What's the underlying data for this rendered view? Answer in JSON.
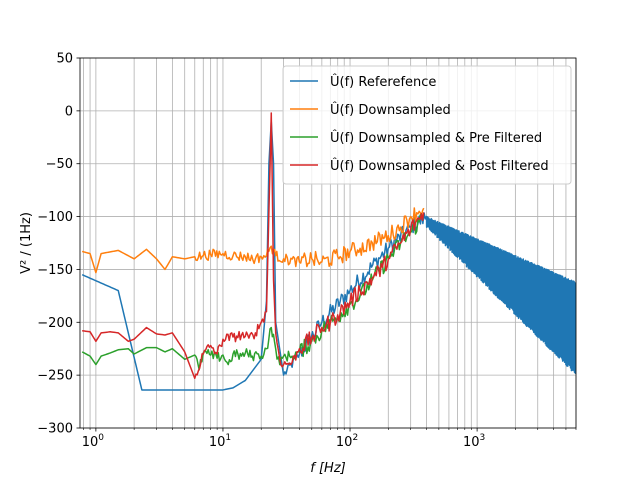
{
  "chart_data": {
    "type": "line",
    "xlabel": "f [Hz]",
    "ylabel": "V² / (1Hz)",
    "x_scale": "log",
    "xlim": [
      0.75,
      6000
    ],
    "ylim": [
      -300,
      50
    ],
    "y_ticks": [
      -300,
      -250,
      -200,
      -150,
      -100,
      -50,
      0,
      50
    ],
    "x_ticks": [
      {
        "value": 1,
        "label": "10",
        "exp": "0"
      },
      {
        "value": 10,
        "label": "10",
        "exp": "1"
      },
      {
        "value": 100,
        "label": "10",
        "exp": "2"
      },
      {
        "value": 1000,
        "label": "10",
        "exp": "3"
      }
    ],
    "grid": true,
    "legend_position": "top-right",
    "series": [
      {
        "name": "Û(f) Referefence",
        "color": "#1f77b4",
        "points": [
          [
            0.78,
            -155
          ],
          [
            1.5,
            -170
          ],
          [
            2.3,
            -264
          ],
          [
            5,
            -264
          ],
          [
            10,
            -264
          ],
          [
            12,
            -262
          ],
          [
            15,
            -255
          ],
          [
            20,
            -235
          ],
          [
            22,
            -180
          ],
          [
            23,
            -50
          ],
          [
            24,
            -10
          ],
          [
            25,
            -50
          ],
          [
            26,
            -200
          ],
          [
            30,
            -250
          ],
          [
            40,
            -230
          ],
          [
            60,
            -200
          ],
          [
            100,
            -170
          ],
          [
            200,
            -130
          ],
          [
            300,
            -110
          ],
          [
            400,
            -100
          ]
        ],
        "envelope": {
          "x_start": 400,
          "x_end": 6000,
          "upper_start": -100,
          "upper_end": -162,
          "lower_start": -110,
          "lower_end": -250
        }
      },
      {
        "name": "Û(f) Downsampled",
        "color": "#ff7f0e",
        "points": [
          [
            0.78,
            -133
          ],
          [
            0.9,
            -135
          ],
          [
            1.0,
            -153
          ],
          [
            1.1,
            -135
          ],
          [
            1.5,
            -132
          ],
          [
            2,
            -140
          ],
          [
            2.5,
            -131
          ],
          [
            3,
            -140
          ],
          [
            3.5,
            -150
          ],
          [
            4,
            -138
          ],
          [
            5,
            -140
          ],
          [
            6,
            -138
          ],
          [
            7,
            -137
          ],
          [
            8,
            -136
          ],
          [
            10,
            -135
          ],
          [
            12,
            -137
          ],
          [
            15,
            -138
          ],
          [
            18,
            -140
          ],
          [
            20,
            -138
          ],
          [
            22,
            -137
          ],
          [
            24,
            -128
          ],
          [
            26,
            -137
          ],
          [
            30,
            -140
          ],
          [
            40,
            -143
          ],
          [
            50,
            -140
          ],
          [
            60,
            -143
          ],
          [
            80,
            -138
          ],
          [
            100,
            -133
          ],
          [
            120,
            -130
          ],
          [
            150,
            -125
          ],
          [
            200,
            -118
          ],
          [
            250,
            -110
          ],
          [
            300,
            -100
          ],
          [
            350,
            -95
          ],
          [
            380,
            -92
          ]
        ]
      },
      {
        "name": "Û(f) Downsampled & Pre Filtered",
        "color": "#2ca02c",
        "points": [
          [
            0.78,
            -228
          ],
          [
            0.9,
            -232
          ],
          [
            1.0,
            -240
          ],
          [
            1.1,
            -232
          ],
          [
            1.3,
            -229
          ],
          [
            1.5,
            -226
          ],
          [
            1.8,
            -225
          ],
          [
            2,
            -230
          ],
          [
            2.5,
            -224
          ],
          [
            3,
            -224
          ],
          [
            3.5,
            -228
          ],
          [
            4,
            -225
          ],
          [
            5,
            -235
          ],
          [
            6,
            -231
          ],
          [
            6.5,
            -245
          ],
          [
            7,
            -229
          ],
          [
            8,
            -231
          ],
          [
            9,
            -234
          ],
          [
            10,
            -231
          ],
          [
            11,
            -240
          ],
          [
            12,
            -230
          ],
          [
            14,
            -232
          ],
          [
            15,
            -229
          ],
          [
            17,
            -232
          ],
          [
            19,
            -230
          ],
          [
            20,
            -232
          ],
          [
            22,
            -225
          ],
          [
            24,
            -205
          ],
          [
            26,
            -225
          ],
          [
            28,
            -240
          ],
          [
            30,
            -232
          ],
          [
            35,
            -232
          ],
          [
            40,
            -228
          ],
          [
            50,
            -218
          ],
          [
            60,
            -208
          ],
          [
            70,
            -200
          ],
          [
            80,
            -195
          ],
          [
            100,
            -183
          ],
          [
            120,
            -175
          ],
          [
            150,
            -160
          ],
          [
            200,
            -140
          ],
          [
            250,
            -125
          ],
          [
            300,
            -115
          ],
          [
            350,
            -105
          ],
          [
            380,
            -98
          ]
        ]
      },
      {
        "name": "Û(f) Downsampled & Post Filtered",
        "color": "#d62728",
        "points": [
          [
            0.78,
            -208
          ],
          [
            0.9,
            -209
          ],
          [
            1.0,
            -218
          ],
          [
            1.1,
            -210
          ],
          [
            1.3,
            -209
          ],
          [
            1.5,
            -210
          ],
          [
            1.8,
            -218
          ],
          [
            2,
            -216
          ],
          [
            2.5,
            -205
          ],
          [
            3,
            -211
          ],
          [
            3.5,
            -212
          ],
          [
            4,
            -210
          ],
          [
            5,
            -228
          ],
          [
            6,
            -253
          ],
          [
            7,
            -230
          ],
          [
            8,
            -222
          ],
          [
            9,
            -230
          ],
          [
            10,
            -216
          ],
          [
            12,
            -214
          ],
          [
            14,
            -212
          ],
          [
            16,
            -215
          ],
          [
            18,
            -210
          ],
          [
            20,
            -200
          ],
          [
            22,
            -190
          ],
          [
            24,
            -2
          ],
          [
            25,
            -160
          ],
          [
            26,
            -210
          ],
          [
            28,
            -235
          ],
          [
            30,
            -240
          ],
          [
            35,
            -238
          ],
          [
            40,
            -225
          ],
          [
            50,
            -215
          ],
          [
            60,
            -205
          ],
          [
            70,
            -200
          ],
          [
            80,
            -193
          ],
          [
            100,
            -180
          ],
          [
            120,
            -170
          ],
          [
            150,
            -158
          ],
          [
            180,
            -148
          ],
          [
            200,
            -140
          ],
          [
            250,
            -125
          ],
          [
            300,
            -112
          ],
          [
            350,
            -102
          ],
          [
            380,
            -96
          ]
        ]
      }
    ]
  }
}
